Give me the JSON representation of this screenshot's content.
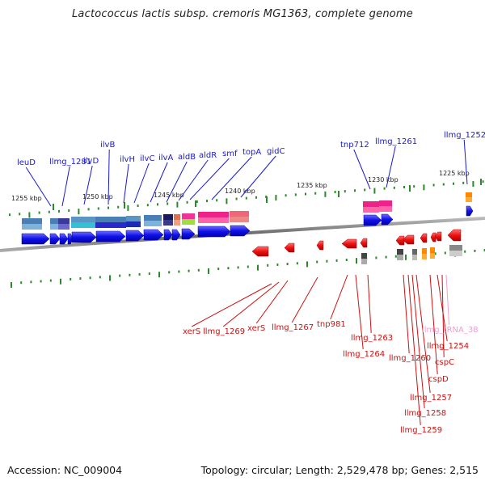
{
  "title": "Lactococcus lactis subsp. cremoris MG1363, complete genome",
  "footer": {
    "accession": "Accession: NC_009004",
    "summary": "Topology: circular; Length: 2,529,478 bp; Genes: 2,515"
  },
  "colors": {
    "forward_label": "#1a1acc",
    "reverse_label": "#cc1111",
    "rna_label": "#f0a0d0",
    "tick": "#2a8a2a",
    "backbone": "#777777"
  },
  "scale": [
    "1255 kbp",
    "1250 kbp",
    "1245 kbp",
    "1240 kbp",
    "1235 kbp",
    "1230 kbp",
    "1225 kbp"
  ],
  "forward_genes": [
    "leuD",
    "llmg_1281",
    "ilvD",
    "ilvB",
    "ilvH",
    "ilvC",
    "ilvA",
    "aldB",
    "aldR",
    "smf",
    "topA",
    "gidC",
    "tnp712",
    "llmg_1261",
    "llmg_1252"
  ],
  "reverse_genes": [
    "xerS",
    "llmg_1269",
    "xerS",
    "llmg_1267",
    "tnp981",
    "llmg_1263",
    "llmg_1264",
    "llmg_1260",
    "llmg_1254",
    "cspC",
    "cspD",
    "llmg_1257",
    "llmg_1258",
    "llmg_1259",
    "llmg_tRNA_38"
  ]
}
